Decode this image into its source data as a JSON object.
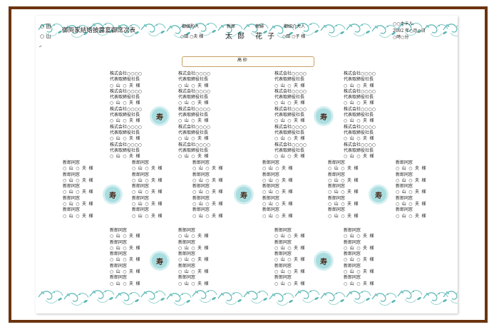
{
  "title": "御両家結婚披露宴御席次表",
  "left_families": [
    "○ 田",
    "○ 山"
  ],
  "header": {
    "nakodo_label": "御媒酌人",
    "nakodo_name": "○田 ○夫 様",
    "groom_label": "新郎",
    "groom_name": "太 郎",
    "bride_label": "新婦",
    "bride_name": "花 子",
    "introducer_label": "御紹介大人",
    "introducer_name": "○田 ○子 様",
    "venue": "○○ホテル",
    "date": "2002 年○月○日",
    "time": "○時○分"
  },
  "high_seat": "高 砂",
  "kotobuki": "寿",
  "guest": {
    "company": "株式会社○○○○",
    "title": "代表取締役社長",
    "classmate": "新郎同窓",
    "name": "○ 山 ○ 夫 様"
  }
}
